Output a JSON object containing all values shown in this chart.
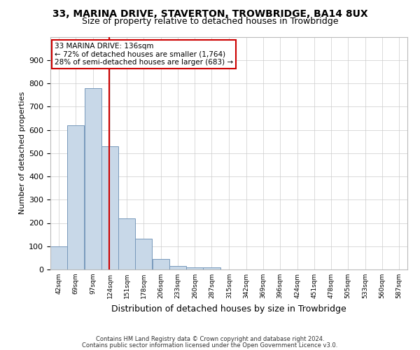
{
  "title": "33, MARINA DRIVE, STAVERTON, TROWBRIDGE, BA14 8UX",
  "subtitle": "Size of property relative to detached houses in Trowbridge",
  "xlabel": "Distribution of detached houses by size in Trowbridge",
  "ylabel": "Number of detached properties",
  "bin_edges": [
    42,
    69,
    97,
    124,
    151,
    178,
    206,
    233,
    260,
    287,
    315,
    342,
    369,
    396,
    424,
    451,
    478,
    505,
    533,
    560,
    587
  ],
  "bar_heights": [
    100,
    620,
    780,
    530,
    220,
    133,
    45,
    15,
    10,
    10,
    0,
    0,
    0,
    0,
    0,
    0,
    0,
    0,
    0,
    0
  ],
  "bar_color": "#c8d8e8",
  "bar_edge_color": "#7799bb",
  "vline_x": 136,
  "vline_color": "#cc0000",
  "annotation_text": "33 MARINA DRIVE: 136sqm\n← 72% of detached houses are smaller (1,764)\n28% of semi-detached houses are larger (683) →",
  "annotation_box_color": "white",
  "annotation_box_edge": "#cc0000",
  "ylim": [
    0,
    1000
  ],
  "yticks": [
    0,
    100,
    200,
    300,
    400,
    500,
    600,
    700,
    800,
    900,
    1000
  ],
  "footnote1": "Contains HM Land Registry data © Crown copyright and database right 2024.",
  "footnote2": "Contains public sector information licensed under the Open Government Licence v3.0.",
  "background_color": "#ffffff",
  "grid_color": "#cccccc",
  "title_fontsize": 10,
  "subtitle_fontsize": 9
}
